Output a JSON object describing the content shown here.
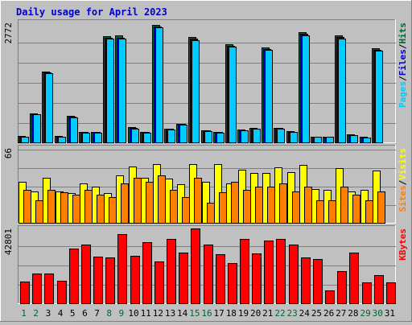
{
  "title": "Daily usage for April 2023",
  "colors": {
    "background": "#c0c0c0",
    "title": "#0000cc",
    "panel_bg": "#c0c0c0",
    "grid": "#808080",
    "hits": "#006633",
    "files": "#0000cc",
    "pages": "#00ccff",
    "visits": "#ffff00",
    "sites": "#ff8000",
    "kbytes": "#ff0000",
    "weekend_day": "#006633",
    "weekday": "#000000"
  },
  "days": [
    "1",
    "2",
    "3",
    "4",
    "5",
    "6",
    "7",
    "8",
    "9",
    "10",
    "11",
    "12",
    "13",
    "14",
    "15",
    "16",
    "17",
    "18",
    "19",
    "20",
    "21",
    "22",
    "23",
    "24",
    "25",
    "26",
    "27",
    "28",
    "29",
    "30",
    "31"
  ],
  "weekend_days": [
    "1",
    "2",
    "8",
    "9",
    "15",
    "16",
    "22",
    "23",
    "29",
    "30"
  ],
  "chart_data": [
    {
      "type": "bar",
      "panel": "top",
      "axis_label": "2772",
      "ymax": 2772,
      "legend": [
        "Pages",
        "Files",
        "Hits"
      ],
      "series": [
        {
          "name": "Hits",
          "values": [
            150,
            690,
            1680,
            150,
            620,
            250,
            250,
            2510,
            2520,
            360,
            250,
            2772,
            330,
            440,
            2480,
            290,
            250,
            2310,
            300,
            340,
            2240,
            350,
            260,
            2600,
            140,
            140,
            2520,
            190,
            130,
            2230,
            0
          ]
        },
        {
          "name": "Files",
          "values": [
            130,
            670,
            1650,
            140,
            600,
            240,
            240,
            2470,
            2470,
            350,
            240,
            2740,
            320,
            430,
            2450,
            280,
            240,
            2270,
            290,
            330,
            2200,
            340,
            250,
            2560,
            130,
            130,
            2480,
            180,
            120,
            2190,
            0
          ]
        },
        {
          "name": "Pages",
          "values": [
            125,
            660,
            1630,
            130,
            590,
            230,
            230,
            2450,
            2440,
            330,
            230,
            2720,
            300,
            420,
            2420,
            270,
            230,
            2250,
            280,
            320,
            2180,
            330,
            240,
            2530,
            125,
            125,
            2450,
            170,
            110,
            2160,
            0
          ]
        }
      ]
    },
    {
      "type": "bar",
      "panel": "middle",
      "axis_label": "66",
      "ymax": 66,
      "legend": [
        "Sites",
        "Visits"
      ],
      "series": [
        {
          "name": "Visits",
          "values": [
            36,
            28,
            40,
            28,
            26,
            35,
            32,
            26,
            42,
            50,
            40,
            52,
            39,
            34,
            52,
            36,
            52,
            35,
            47,
            44,
            44,
            49,
            45,
            51,
            30,
            29,
            48,
            28,
            29,
            46,
            0
          ]
        },
        {
          "name": "Sites",
          "values": [
            29,
            20,
            29,
            27,
            25,
            29,
            25,
            23,
            35,
            40,
            36,
            42,
            29,
            23,
            40,
            18,
            27,
            36,
            29,
            32,
            32,
            35,
            28,
            32,
            20,
            20,
            32,
            25,
            20,
            28,
            0
          ]
        }
      ]
    },
    {
      "type": "bar",
      "panel": "bottom",
      "axis_label": "42801",
      "ymax": 42801,
      "legend": [
        "KBytes"
      ],
      "series": [
        {
          "name": "KBytes",
          "values": [
            12500,
            17200,
            17200,
            12800,
            31300,
            33800,
            26700,
            26100,
            39500,
            27000,
            34800,
            24000,
            36700,
            29100,
            42801,
            33800,
            28100,
            23000,
            37000,
            28400,
            35900,
            36800,
            33700,
            26400,
            25200,
            7300,
            18200,
            29000,
            12100,
            16300,
            12000
          ]
        }
      ]
    }
  ]
}
